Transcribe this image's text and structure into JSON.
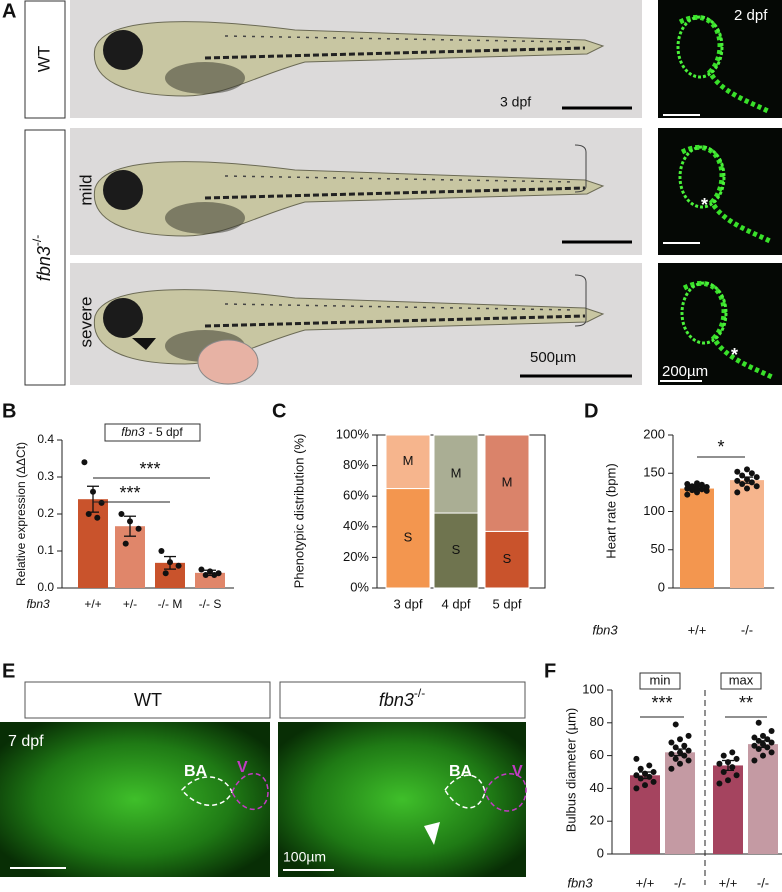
{
  "figure": {
    "panel_labels": [
      "A",
      "B",
      "C",
      "D",
      "E",
      "F"
    ],
    "panel_a": {
      "wt": "WT",
      "gene": "fbn3",
      "genotype": "-/-",
      "mild": "mild",
      "severe": "severe",
      "stage": "3 dpf",
      "scale": "500µm",
      "inset_stage": "2 dpf",
      "inset_scale": "200µm",
      "asterisks": [
        "*",
        "*"
      ]
    },
    "panel_e": {
      "wt": "WT",
      "gene": "fbn3",
      "genotype": "-/-",
      "stage": "7 dpf",
      "labels": [
        "BA",
        "V",
        "BA",
        "V"
      ],
      "scale": "100µm"
    }
  },
  "chart_data": [
    {
      "type": "bar",
      "subtitle_gene": "fbn3",
      "subtitle": "- 5 dpf",
      "ylabel": "Relative expression (ΔΔCt)",
      "xlabel": "fbn3",
      "categories": [
        "+/+",
        "+/-",
        "-/- M",
        "-/- S"
      ],
      "values": [
        0.24,
        0.167,
        0.068,
        0.041
      ],
      "errors": [
        0.035,
        0.027,
        0.017,
        0.007
      ],
      "colors": [
        "#c9532c",
        "#e0866a",
        "#c9532c",
        "#e0866a"
      ],
      "points": [
        [
          0.34,
          0.26,
          0.23,
          0.2,
          0.19
        ],
        [
          0.2,
          0.18,
          0.16,
          0.12
        ],
        [
          0.1,
          0.07,
          0.06,
          0.04
        ],
        [
          0.05,
          0.045,
          0.04,
          0.035,
          0.035
        ]
      ],
      "significance": [
        "***",
        "***"
      ],
      "ylim": [
        0,
        0.4
      ],
      "yticks": [
        {
          "value": 0,
          "label": "0.0"
        },
        0.1,
        0.2,
        0.3,
        0.4
      ]
    },
    {
      "type": "stacked_bar",
      "ylabel": "Phenotypic distribution (%)",
      "categories": [
        "3 dpf",
        "4 dpf",
        "5 dpf"
      ],
      "series": [
        {
          "name": "S",
          "colors": [
            "#f3964f",
            "#6f744f",
            "#c9532c"
          ],
          "values": [
            65,
            49,
            37
          ]
        },
        {
          "name": "M",
          "colors": [
            "#f6b58d",
            "#aaae94",
            "#da836a"
          ],
          "values": [
            35,
            51,
            63
          ]
        }
      ],
      "ylim": [
        0,
        100
      ],
      "yticks": [
        {
          "value": 0,
          "label": "0%"
        },
        {
          "value": 20,
          "label": "20%"
        },
        {
          "value": 40,
          "label": "40%"
        },
        {
          "value": 60,
          "label": "60%"
        },
        {
          "value": 80,
          "label": "80%"
        },
        {
          "value": 100,
          "label": "100%"
        }
      ]
    },
    {
      "type": "bar",
      "ylabel": "Heart rate (bpm)",
      "xlabel": "fbn3",
      "categories": [
        "+/+",
        "-/-"
      ],
      "values": [
        130,
        141
      ],
      "errors": [
        3,
        4
      ],
      "colors": [
        "#f3964f",
        "#f6b58d"
      ],
      "points": [
        [
          122,
          125,
          127,
          128,
          129,
          130,
          131,
          132,
          133,
          135,
          136,
          137
        ],
        [
          125,
          130,
          133,
          136,
          138,
          140,
          142,
          145,
          147,
          150,
          152,
          155
        ]
      ],
      "significance": [
        "*"
      ],
      "ylim": [
        0,
        200
      ],
      "yticks": [
        0,
        50,
        100,
        150,
        200
      ]
    },
    {
      "type": "bar",
      "ylabel": "Bulbus diameter (µm)",
      "xlabel": "fbn3",
      "groups": [
        "min",
        "max"
      ],
      "categories": [
        "+/+",
        "-/-",
        "+/+",
        "-/-"
      ],
      "values": [
        48,
        62,
        54,
        67
      ],
      "errors": [
        2,
        2,
        3,
        2
      ],
      "colors": [
        "#a5445f",
        "#c49aa3",
        "#a5445f",
        "#c49aa3"
      ],
      "points": [
        [
          40,
          42,
          44,
          46,
          47,
          48,
          49,
          50,
          52,
          54,
          58
        ],
        [
          52,
          55,
          57,
          58,
          60,
          61,
          62,
          63,
          65,
          66,
          68,
          70,
          72,
          79
        ],
        [
          43,
          45,
          48,
          50,
          53,
          55,
          56,
          58,
          60,
          62
        ],
        [
          57,
          60,
          62,
          64,
          65,
          66,
          67,
          68,
          69,
          70,
          71,
          72,
          75,
          80
        ]
      ],
      "significance": [
        "***",
        "**"
      ],
      "ylim": [
        0,
        100
      ],
      "yticks": [
        0,
        20,
        40,
        60,
        80,
        100
      ]
    }
  ]
}
